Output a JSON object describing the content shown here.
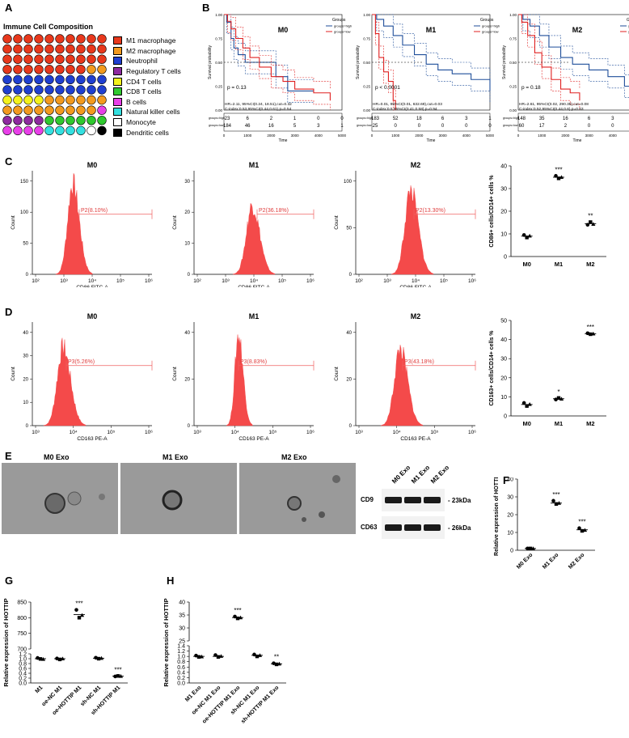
{
  "panels": [
    "A",
    "B",
    "C",
    "D",
    "E",
    "F",
    "G",
    "H"
  ],
  "panel_a": {
    "title": "Immune Cell Composition",
    "legend": [
      {
        "label": "M1 macrophage",
        "color": "#e8381c"
      },
      {
        "label": "M2 macrophage",
        "color": "#f39a1e"
      },
      {
        "label": "Neutrophil",
        "color": "#1f3fd1"
      },
      {
        "label": "Regulatory T cells",
        "color": "#8e2aa0"
      },
      {
        "label": "CD4 T cells",
        "color": "#f4f21c"
      },
      {
        "label": "CD8 T cells",
        "color": "#2fc92f"
      },
      {
        "label": "B cells",
        "color": "#e83fe8"
      },
      {
        "label": "Natural killer cells",
        "color": "#34e0e0"
      },
      {
        "label": "Monocyte",
        "color": "#ffffff"
      },
      {
        "label": "Dendritic cells",
        "color": "#000000"
      }
    ],
    "rows": [
      [
        0,
        0,
        0,
        0,
        0,
        0,
        0,
        0,
        0,
        0
      ],
      [
        0,
        0,
        0,
        0,
        0,
        0,
        0,
        0,
        0,
        0
      ],
      [
        0,
        0,
        0,
        0,
        0,
        0,
        0,
        0,
        0,
        0
      ],
      [
        0,
        0,
        0,
        0,
        0,
        0,
        0,
        0,
        1,
        1
      ],
      [
        2,
        2,
        2,
        2,
        2,
        2,
        2,
        2,
        2,
        2
      ],
      [
        2,
        2,
        2,
        2,
        2,
        2,
        2,
        2,
        2,
        2
      ],
      [
        4,
        4,
        4,
        4,
        1,
        1,
        1,
        1,
        1,
        1
      ],
      [
        1,
        1,
        1,
        1,
        1,
        1,
        1,
        1,
        1,
        6
      ],
      [
        3,
        3,
        3,
        3,
        5,
        5,
        5,
        5,
        5,
        5
      ],
      [
        6,
        6,
        6,
        6,
        7,
        7,
        7,
        7,
        8,
        9
      ]
    ]
  },
  "panel_b": {
    "legend_title": "Groups",
    "legend_high": "groups=high",
    "legend_low": "groups=low",
    "ylabel": "Survival probability",
    "xlabel": "Time",
    "xticks": [
      "0",
      "1000",
      "2000",
      "3000",
      "4000",
      "5000"
    ],
    "yticks": [
      "0.00",
      "0.25",
      "0.50",
      "0.75",
      "1.00"
    ],
    "risk_labels": [
      "groups=high",
      "groups=low"
    ],
    "plots": [
      {
        "title": "M0",
        "p": "p = 0.13",
        "hr": "HR=2.11, 95%CI(0.24, 18.51),cut=0.32",
        "cindex": "C-index:0.53,95%CI(0.44,0.61),p=0.54",
        "risk_high": [
          "23",
          "6",
          "2",
          "1",
          "0",
          "0"
        ],
        "risk_low": [
          "184",
          "46",
          "16",
          "5",
          "3",
          "1"
        ]
      },
      {
        "title": "M1",
        "p": "p < 0.0001",
        "hr": "HR=0.01, 95%CI(0.01, 632.69),cut=0.03",
        "cindex": "C-index:0.5,95%CI(0.41,0.58),p=0.94",
        "risk_high": [
          "183",
          "52",
          "18",
          "6",
          "3",
          "1"
        ],
        "risk_low": [
          "25",
          "0",
          "0",
          "0",
          "0",
          "0"
        ]
      },
      {
        "title": "M2",
        "p": "p = 0.18",
        "hr": "HR=2.61, 95%CI(0.02, 290.35),cut=0.08",
        "cindex": "C-index:0.52,95%CI(0.44,0.6),p=0.63",
        "risk_high": [
          "148",
          "35",
          "16",
          "6",
          "3",
          "1"
        ],
        "risk_low": [
          "60",
          "17",
          "2",
          "0",
          "0",
          "0"
        ]
      }
    ]
  },
  "panel_c": {
    "xlabel": "CD86 FITC-A",
    "ylabel": "Count",
    "xticks": [
      "10²",
      "10³",
      "10⁴",
      "10⁵",
      "10⁶"
    ],
    "plots": [
      {
        "title": "M0",
        "gate": "P2(8.10%)",
        "yticks": [
          "0",
          "50",
          "100",
          "150"
        ]
      },
      {
        "title": "M1",
        "gate": "P2(36.18%)",
        "yticks": [
          "0",
          "10",
          "20",
          "30"
        ]
      },
      {
        "title": "M2",
        "gate": "P2(13.30%)",
        "yticks": [
          "0",
          "50",
          "100"
        ]
      }
    ],
    "chart_data": {
      "type": "scatter",
      "ylabel": "CD86+ cells/CD14+ cells %",
      "categories": [
        "M0",
        "M1",
        "M2"
      ],
      "ylim": [
        0,
        40
      ],
      "yticks": [
        "0",
        "10",
        "20",
        "30",
        "40"
      ],
      "means": [
        9,
        35,
        14.5
      ],
      "points": [
        [
          9.5,
          8.4,
          9.1
        ],
        [
          35.6,
          34.5,
          35.0
        ],
        [
          14.0,
          15.2,
          14.3
        ]
      ],
      "stars": [
        "",
        "***",
        "**"
      ]
    }
  },
  "panel_d": {
    "xlabel": "CD163 PE-A",
    "ylabel": "Count",
    "xticks": [
      "10³",
      "10⁴",
      "10⁵",
      "10⁶"
    ],
    "plots": [
      {
        "title": "M0",
        "gate": "P3(5.26%)",
        "yticks": [
          "0",
          "10",
          "20",
          "30",
          "40"
        ]
      },
      {
        "title": "M1",
        "gate": "P3(8.83%)",
        "yticks": [
          "0",
          "20",
          "40"
        ]
      },
      {
        "title": "M2",
        "gate": "P3(43.18%)",
        "yticks": [
          "0",
          "20",
          "40"
        ]
      }
    ],
    "chart_data": {
      "type": "scatter",
      "ylabel": "CD163+ cells/CD14+ cells %",
      "categories": [
        "M0",
        "M1",
        "M2"
      ],
      "ylim": [
        0,
        50
      ],
      "yticks": [
        "0",
        "10",
        "20",
        "30",
        "40",
        "50"
      ],
      "means": [
        6,
        9,
        43
      ],
      "points": [
        [
          6.8,
          5.2,
          6.1
        ],
        [
          8.6,
          9.4,
          8.9
        ],
        [
          43.3,
          42.8,
          43.0
        ]
      ],
      "stars": [
        "",
        "*",
        "***"
      ]
    }
  },
  "panel_e": {
    "em_titles": [
      "M0 Exo",
      "M1 Exo",
      "M2 Exo"
    ],
    "blot_lanes": [
      "M0 Exo",
      "M1 Exo",
      "M2 Exo"
    ],
    "blots": [
      {
        "protein": "CD9",
        "size": "- 23kDa"
      },
      {
        "protein": "CD63",
        "size": "- 26kDa"
      }
    ]
  },
  "panel_f": {
    "chart_data": {
      "type": "scatter",
      "ylabel": "Relative expression of HOTTIP",
      "categories": [
        "M0 Exo",
        "M1 Exo",
        "M2 Exo"
      ],
      "ylim": [
        0,
        40
      ],
      "yticks": [
        "0",
        "10",
        "20",
        "30",
        "40"
      ],
      "means": [
        1,
        26.5,
        11.5
      ],
      "points": [
        [
          1,
          1,
          1
        ],
        [
          27.8,
          26.0,
          26.5
        ],
        [
          12.4,
          10.9,
          11.3
        ]
      ],
      "stars": [
        "",
        "***",
        "***"
      ]
    }
  },
  "panel_g": {
    "chart_data": {
      "type": "scatter",
      "ylabel": "Relative expression of HOTTIP",
      "categories": [
        "M1",
        "oe-NC M1",
        "oe-HOTTIP M1",
        "sh-NC M1",
        "sh-HOTTIP M1"
      ],
      "upper_ticks": [
        "700",
        "750",
        "800",
        "850"
      ],
      "lower_ticks": [
        "0.0",
        "0.2",
        "0.4",
        "0.6",
        "0.8",
        "1.0",
        "1.2"
      ],
      "means": [
        1.0,
        1.0,
        810,
        1.02,
        0.28
      ],
      "points": [
        [
          1.03,
          0.99,
          0.98
        ],
        [
          1.01,
          0.97,
          1.0
        ],
        [
          825,
          800,
          808
        ],
        [
          1.04,
          1.0,
          1.02
        ],
        [
          0.27,
          0.29,
          0.28
        ]
      ],
      "stars": [
        "",
        "",
        "***",
        "",
        "***"
      ]
    }
  },
  "panel_h": {
    "chart_data": {
      "type": "scatter",
      "ylabel": "Relative expression of HOTTIP",
      "categories": [
        "M1 Exo",
        "oe-NC M1 Exo",
        "oe-HOTTIP M1 Exo",
        "sh-NC M1 Exo",
        "sh-HOTTIP M1 Exo"
      ],
      "upper_ticks": [
        "25",
        "30",
        "35",
        "40"
      ],
      "lower_ticks": [
        "0.0",
        "0.2",
        "0.4",
        "0.6",
        "0.8",
        "1.0",
        "1.2",
        "1.4"
      ],
      "means": [
        1.0,
        1.0,
        34,
        1.04,
        0.72
      ],
      "points": [
        [
          1.03,
          0.98,
          0.99
        ],
        [
          1.05,
          0.98,
          1.01
        ],
        [
          34.4,
          33.7,
          34.0
        ],
        [
          1.07,
          1.0,
          1.04
        ],
        [
          0.74,
          0.7,
          0.72
        ]
      ],
      "stars": [
        "",
        "",
        "***",
        "",
        "**"
      ]
    }
  }
}
